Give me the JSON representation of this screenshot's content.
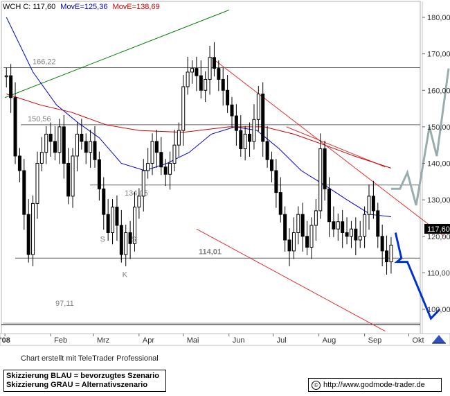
{
  "header": {
    "symbol_text": "WCH C: 117,60",
    "ma1_text": "MovE=125,36",
    "ma2_text": "MovE=138,69"
  },
  "colors": {
    "price": "#000000",
    "ma_blue": "#0000cc",
    "ma_red": "#cc0000",
    "trend_green": "#008000",
    "channel_red": "#e03030",
    "scenario_blue": "#0033cc",
    "scenario_grey": "#9aadad",
    "level_line": "#666666"
  },
  "chart_data": {
    "type": "candlestick",
    "title": "",
    "ylim": [
      94,
      184
    ],
    "y_ticks": [
      100,
      110,
      120,
      130,
      140,
      150,
      160,
      170,
      180
    ],
    "y_tick_labels": [
      "100,00",
      "110,00",
      "120,00",
      "130,00",
      "140,00",
      "150,00",
      "160,00",
      "170,00",
      "180,00"
    ],
    "x_labels": [
      "'08",
      "Feb",
      "Mrz",
      "Apr",
      "Mai",
      "Jun",
      "Jul",
      "Aug",
      "Sep",
      "Okt"
    ],
    "last_price_label": "117,60",
    "last_price": 117.6,
    "price_series": [
      [
        "2008-01-02",
        164
      ],
      [
        "2008-01-05",
        158
      ],
      [
        "2008-01-08",
        142
      ],
      [
        "2008-01-11",
        138
      ],
      [
        "2008-01-14",
        126
      ],
      [
        "2008-01-17",
        115
      ],
      [
        "2008-01-20",
        129
      ],
      [
        "2008-01-23",
        140
      ],
      [
        "2008-01-26",
        143
      ],
      [
        "2008-01-29",
        148
      ],
      [
        "2008-02-01",
        146
      ],
      [
        "2008-02-04",
        143
      ],
      [
        "2008-02-07",
        150
      ],
      [
        "2008-02-10",
        140
      ],
      [
        "2008-02-13",
        131
      ],
      [
        "2008-02-16",
        142
      ],
      [
        "2008-02-19",
        148
      ],
      [
        "2008-02-22",
        146
      ],
      [
        "2008-02-25",
        143
      ],
      [
        "2008-02-28",
        146
      ],
      [
        "2008-03-02",
        141
      ],
      [
        "2008-03-05",
        133
      ],
      [
        "2008-03-08",
        126
      ],
      [
        "2008-03-11",
        121
      ],
      [
        "2008-03-14",
        128
      ],
      [
        "2008-03-17",
        123
      ],
      [
        "2008-03-20",
        115
      ],
      [
        "2008-03-23",
        121
      ],
      [
        "2008-03-26",
        118
      ],
      [
        "2008-03-29",
        128
      ],
      [
        "2008-04-01",
        131
      ],
      [
        "2008-04-04",
        138
      ],
      [
        "2008-04-07",
        140
      ],
      [
        "2008-04-10",
        146
      ],
      [
        "2008-04-13",
        143
      ],
      [
        "2008-04-16",
        139
      ],
      [
        "2008-04-19",
        137
      ],
      [
        "2008-04-22",
        140
      ],
      [
        "2008-04-25",
        145
      ],
      [
        "2008-04-28",
        149
      ],
      [
        "2008-05-01",
        161
      ],
      [
        "2008-05-04",
        165
      ],
      [
        "2008-05-07",
        166
      ],
      [
        "2008-05-10",
        164
      ],
      [
        "2008-05-13",
        160
      ],
      [
        "2008-05-16",
        163
      ],
      [
        "2008-05-19",
        169
      ],
      [
        "2008-05-22",
        166
      ],
      [
        "2008-05-25",
        163
      ],
      [
        "2008-05-28",
        160
      ],
      [
        "2008-05-31",
        156
      ],
      [
        "2008-06-03",
        153
      ],
      [
        "2008-06-06",
        149
      ],
      [
        "2008-06-09",
        144
      ],
      [
        "2008-06-12",
        148
      ],
      [
        "2008-06-15",
        146
      ],
      [
        "2008-06-18",
        152
      ],
      [
        "2008-06-21",
        159
      ],
      [
        "2008-06-24",
        146
      ],
      [
        "2008-06-27",
        141
      ],
      [
        "2008-06-30",
        138
      ],
      [
        "2008-07-03",
        132
      ],
      [
        "2008-07-06",
        126
      ],
      [
        "2008-07-09",
        119
      ],
      [
        "2008-07-12",
        116
      ],
      [
        "2008-07-15",
        121
      ],
      [
        "2008-07-18",
        126
      ],
      [
        "2008-07-21",
        120
      ],
      [
        "2008-07-24",
        117
      ],
      [
        "2008-07-27",
        123
      ],
      [
        "2008-07-30",
        127
      ],
      [
        "2008-08-02",
        144
      ],
      [
        "2008-08-05",
        133
      ],
      [
        "2008-08-08",
        124
      ],
      [
        "2008-08-11",
        122
      ],
      [
        "2008-08-14",
        124
      ],
      [
        "2008-08-17",
        121
      ],
      [
        "2008-08-20",
        120
      ],
      [
        "2008-08-23",
        122
      ],
      [
        "2008-08-26",
        119
      ],
      [
        "2008-08-29",
        120
      ],
      [
        "2008-09-01",
        126
      ],
      [
        "2008-09-04",
        131
      ],
      [
        "2008-09-07",
        127
      ],
      [
        "2008-09-10",
        120
      ],
      [
        "2008-09-13",
        116
      ],
      [
        "2008-09-16",
        113
      ],
      [
        "2008-09-19",
        117.6
      ]
    ],
    "series": [
      {
        "name": "MovE=125,36",
        "color": "#0000cc",
        "points": [
          [
            "2008-01-02",
            180
          ],
          [
            "2008-01-20",
            165
          ],
          [
            "2008-02-05",
            156
          ],
          [
            "2008-02-20",
            151
          ],
          [
            "2008-03-05",
            147
          ],
          [
            "2008-03-20",
            140
          ],
          [
            "2008-04-05",
            138
          ],
          [
            "2008-04-20",
            140
          ],
          [
            "2008-05-05",
            143
          ],
          [
            "2008-05-20",
            148
          ],
          [
            "2008-06-05",
            150
          ],
          [
            "2008-06-20",
            149
          ],
          [
            "2008-07-05",
            144
          ],
          [
            "2008-07-20",
            138
          ],
          [
            "2008-08-05",
            134
          ],
          [
            "2008-08-20",
            130
          ],
          [
            "2008-09-05",
            126
          ],
          [
            "2008-09-19",
            125.36
          ]
        ]
      },
      {
        "name": "MovE=138,69",
        "color": "#cc0000",
        "points": [
          [
            "2008-01-02",
            159
          ],
          [
            "2008-01-25",
            156
          ],
          [
            "2008-02-15",
            154
          ],
          [
            "2008-03-10",
            150.5
          ],
          [
            "2008-04-01",
            149
          ],
          [
            "2008-05-01",
            148.5
          ],
          [
            "2008-06-01",
            150
          ],
          [
            "2008-06-25",
            150
          ],
          [
            "2008-07-15",
            148
          ],
          [
            "2008-08-05",
            145
          ],
          [
            "2008-08-25",
            142
          ],
          [
            "2008-09-19",
            138.69
          ]
        ]
      }
    ],
    "levels": [
      {
        "label": "166,22",
        "value": 166.22
      },
      {
        "label": "150,56",
        "value": 150.56
      },
      {
        "label": "134,05",
        "value": 134.05
      },
      {
        "label": "114,01",
        "value": 114.01
      },
      {
        "label": "97,11",
        "value": 97.11
      }
    ],
    "trendlines": [
      {
        "kind": "uptrend",
        "color": "#008000",
        "from": [
          "2008-01-01",
          158
        ],
        "to": [
          "2008-06-01",
          182
        ]
      },
      {
        "kind": "channel-upper",
        "color": "#e03030",
        "from": [
          "2008-05-20",
          169
        ],
        "to": [
          "2008-10-25",
          120
        ]
      },
      {
        "kind": "channel-lower",
        "color": "#e03030",
        "from": [
          "2008-05-10",
          122
        ],
        "to": [
          "2008-09-15",
          94
        ]
      },
      {
        "kind": "channel-ma",
        "color": "#e03030",
        "from": [
          "2008-07-10",
          150
        ],
        "to": [
          "2008-09-15",
          139
        ]
      }
    ],
    "annotations": [
      {
        "text": "S",
        "date": "2008-03-07",
        "value": 118.5
      },
      {
        "text": "K",
        "date": "2008-03-22",
        "value": 108.8
      },
      {
        "text": "S",
        "date": "2008-03-28",
        "value": 118.5
      }
    ],
    "scenarios": [
      {
        "name": "Skizzierung BLAU = bevorzugtes Szenario",
        "color": "#0033cc",
        "points": [
          [
            "2008-09-22",
            121
          ],
          [
            "2008-09-26",
            114
          ],
          [
            "2008-09-23",
            113
          ],
          [
            "2008-09-30",
            113
          ],
          [
            "2008-10-16",
            97.5
          ],
          [
            "2008-10-22",
            100
          ]
        ]
      },
      {
        "name": "Skizzierung GRAU = Alternativszenario",
        "color": "#9aadad",
        "points": [
          [
            "2008-09-19",
            133
          ],
          [
            "2008-09-25",
            133
          ],
          [
            "2008-09-30",
            137.5
          ],
          [
            "2008-10-06",
            128.5
          ],
          [
            "2008-10-15",
            150
          ],
          [
            "2008-10-20",
            142
          ],
          [
            "2008-10-28",
            166
          ]
        ]
      }
    ]
  },
  "footer": {
    "credit": "Chart erstellt mit TeleTrader Professional",
    "legend_blue": "Skizzierung BLAU = bevorzugtes Szenario",
    "legend_grey": "Skizzierung GRAU = Alternativszenario",
    "url": "http://www.godmode-trader.de"
  }
}
